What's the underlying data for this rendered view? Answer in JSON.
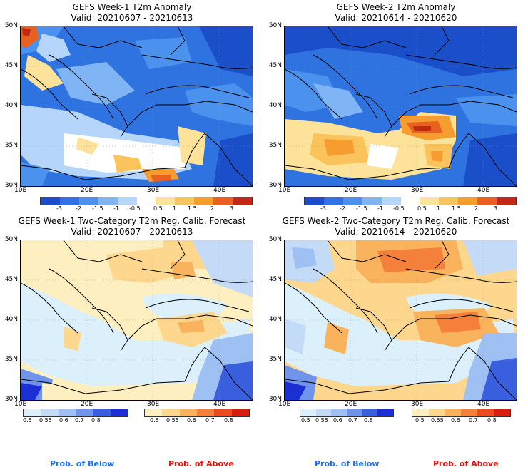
{
  "panels": [
    {
      "id": "w1-anom",
      "title": "GEFS Week-1 T2m Anomaly",
      "valid": "Valid: 20210607 - 20210613",
      "lat_labels": [
        "50N",
        "45N",
        "40N",
        "35N",
        "30N"
      ],
      "lon_labels": [
        "10E",
        "20E",
        "30E",
        "40E"
      ],
      "colorbar_labels": [
        "-3",
        "-2",
        "-1.5",
        "-1",
        "-0.5",
        "0.5",
        "1",
        "1.5",
        "2",
        "3"
      ]
    },
    {
      "id": "w2-anom",
      "title": "GEFS Week-2 T2m Anomaly",
      "valid": "Valid: 20210614 - 20210620",
      "lat_labels": [
        "50N",
        "45N",
        "40N",
        "35N",
        "30N"
      ],
      "lon_labels": [
        "10E",
        "20E",
        "30E",
        "40E"
      ],
      "colorbar_labels": [
        "-3",
        "-2",
        "-1.5",
        "-1",
        "-0.5",
        "0.5",
        "1",
        "1.5",
        "2",
        "3"
      ]
    },
    {
      "id": "w1-prob",
      "title": "GEFS Week-1 Two-Category T2m Reg. Calib. Forecast",
      "valid": "Valid: 20210607 - 20210613",
      "lat_labels": [
        "50N",
        "45N",
        "40N",
        "35N",
        "30N"
      ],
      "lon_labels": [
        "10E",
        "20E",
        "30E",
        "40E"
      ],
      "below_labels": [
        "0.5",
        "0.55",
        "0.6",
        "0.7",
        "0.8"
      ],
      "above_labels": [
        "0.5",
        "0.55",
        "0.6",
        "0.7",
        "0.8"
      ]
    },
    {
      "id": "w2-prob",
      "title": "GEFS Week-2 Two-Category T2m Reg. Calib. Forecast",
      "valid": "Valid: 20210614 - 20210620",
      "lat_labels": [
        "50N",
        "45N",
        "40N",
        "35N",
        "30N"
      ],
      "lon_labels": [
        "10E",
        "20E",
        "30E",
        "40E"
      ],
      "below_labels": [
        "0.5",
        "0.55",
        "0.6",
        "0.7",
        "0.8"
      ],
      "above_labels": [
        "0.5",
        "0.55",
        "0.6",
        "0.7",
        "0.8"
      ]
    }
  ],
  "legend": {
    "below": "Prob. of Below",
    "above": "Prob. of Above",
    "below_color": "#1f6fe0",
    "above_color": "#e0140f"
  },
  "colors": {
    "anom_scale": [
      "#1a4fc9",
      "#2f73e0",
      "#4b92ee",
      "#7fb4f5",
      "#b5d6fa",
      "#ffffff",
      "#fde39a",
      "#fbc35b",
      "#f79c2e",
      "#e8611e",
      "#c02a12"
    ],
    "below_scale": [
      "#dcf0fb",
      "#c3dbf7",
      "#9fc0f2",
      "#6f94ea",
      "#3a5fde",
      "#1b2fd4"
    ],
    "above_scale": [
      "#fdefc0",
      "#fcd78d",
      "#f9b35d",
      "#f4803b",
      "#ec4b1f",
      "#d81e0e"
    ]
  }
}
